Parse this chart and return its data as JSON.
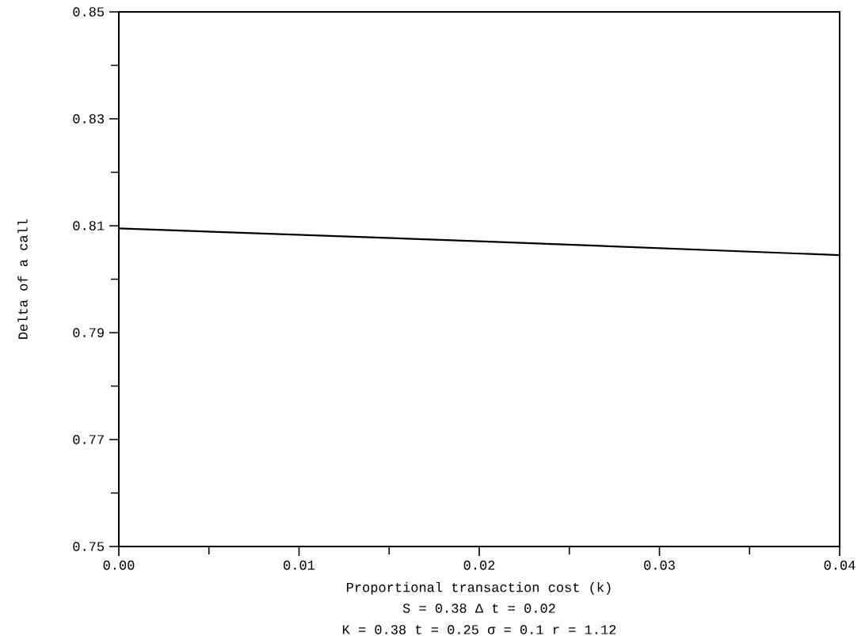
{
  "chart_data": {
    "type": "line",
    "xlabel": "Proportional transaction cost (k)",
    "ylabel": "Delta of a call",
    "x": [
      0,
      0.01,
      0.02,
      0.03,
      0.04
    ],
    "series": [
      {
        "color": "#000000",
        "values": [
          0.8095,
          0.8083,
          0.8071,
          0.8058,
          0.8045
        ]
      }
    ],
    "xlim": [
      0,
      0.04
    ],
    "ylim": [
      0.75,
      0.85
    ],
    "xticks": [
      {
        "value": 0,
        "label": "0.00"
      },
      0.01,
      0.02,
      0.03,
      0.04
    ],
    "yticks": [
      0.75,
      0.77,
      0.79,
      0.81,
      0.83,
      0.85
    ],
    "annotations": [
      "S = 0.38  Δ t = 0.02",
      "K = 0.38   t = 0.25   σ = 0.1   r = 1.12"
    ],
    "grid": false,
    "marker": "none",
    "line_style": "solid"
  }
}
